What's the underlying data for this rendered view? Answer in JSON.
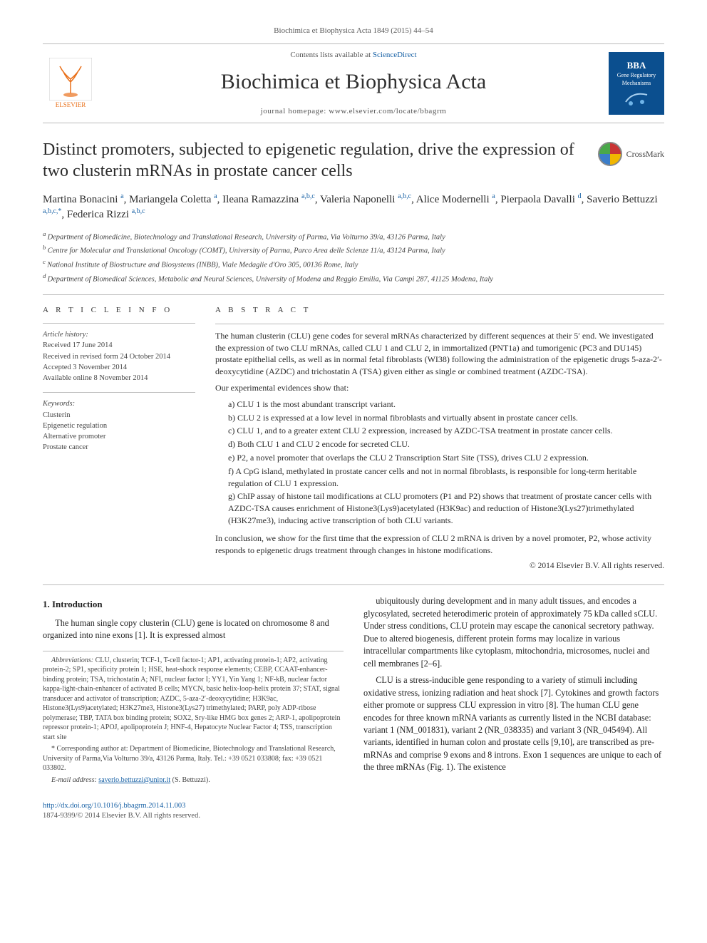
{
  "citation": "Biochimica et Biophysica Acta 1849 (2015) 44–54",
  "header": {
    "contents_prefix": "Contents lists available at ",
    "contents_link": "ScienceDirect",
    "journal": "Biochimica et Biophysica Acta",
    "homepage_label": "journal homepage: ",
    "homepage_url": "www.elsevier.com/locate/bbagrm",
    "publisher_logo_text": "ELSEVIER",
    "cover_top": "BBA",
    "cover_mid": "Gene Regulatory Mechanisms"
  },
  "title": "Distinct promoters, subjected to epigenetic regulation, drive the expression of two clusterin mRNAs in prostate cancer cells",
  "crossmark": "CrossMark",
  "authors_html": "Martina Bonacini <sup>a</sup>, Mariangela Coletta <sup>a</sup>, Ileana Ramazzina <sup>a,b,c</sup>, Valeria Naponelli <sup>a,b,c</sup>, Alice Modernelli <sup>a</sup>, Pierpaola Davalli <sup>d</sup>, Saverio Bettuzzi <sup>a,b,c,*</sup>, Federica Rizzi <sup>a,b,c</sup>",
  "affiliations": [
    "a Department of Biomedicine, Biotechnology and Translational Research, University of Parma, Via Volturno 39/a, 43126 Parma, Italy",
    "b Centre for Molecular and Translational Oncology (COMT), University of Parma, Parco Area delle Scienze 11/a, 43124 Parma, Italy",
    "c National Institute of Biostructure and Biosystems (INBB), Viale Medaglie d'Oro 305, 00136 Rome, Italy",
    "d Department of Biomedical Sciences, Metabolic and Neural Sciences, University of Modena and Reggio Emilia, Via Campi 287, 41125 Modena, Italy"
  ],
  "article_info": {
    "heading": "A R T I C L E   I N F O",
    "history_label": "Article history:",
    "history": [
      "Received 17 June 2014",
      "Received in revised form 24 October 2014",
      "Accepted 3 November 2014",
      "Available online 8 November 2014"
    ],
    "keywords_label": "Keywords:",
    "keywords": [
      "Clusterin",
      "Epigenetic regulation",
      "Alternative promoter",
      "Prostate cancer"
    ]
  },
  "abstract": {
    "heading": "A B S T R A C T",
    "p1": "The human clusterin (CLU) gene codes for several mRNAs characterized by different sequences at their 5′ end. We investigated the expression of two CLU mRNAs, called CLU 1 and CLU 2, in immortalized (PNT1a) and tumorigenic (PC3 and DU145) prostate epithelial cells, as well as in normal fetal fibroblasts (WI38) following the administration of the epigenetic drugs 5-aza-2′-deoxycytidine (AZDC) and trichostatin A (TSA) given either as single or combined treatment (AZDC-TSA).",
    "p2": "Our experimental evidences show that:",
    "items": [
      "a) CLU 1 is the most abundant transcript variant.",
      "b) CLU 2 is expressed at a low level in normal fibroblasts and virtually absent in prostate cancer cells.",
      "c) CLU 1, and to a greater extent CLU 2 expression, increased by AZDC-TSA treatment in prostate cancer cells.",
      "d) Both CLU 1 and CLU 2 encode for secreted CLU.",
      "e) P2, a novel promoter that overlaps the CLU 2 Transcription Start Site (TSS), drives CLU 2 expression.",
      "f) A CpG island, methylated in prostate cancer cells and not in normal fibroblasts, is responsible for long-term heritable regulation of CLU 1 expression.",
      "g) ChIP assay of histone tail modifications at CLU promoters (P1 and P2) shows that treatment of prostate cancer cells with AZDC-TSA causes enrichment of Histone3(Lys9)acetylated (H3K9ac) and reduction of Histone3(Lys27)trimethylated (H3K27me3), inducing active transcription of both CLU variants."
    ],
    "p3": "In conclusion, we show for the first time that the expression of CLU 2 mRNA is driven by a novel promoter, P2, whose activity responds to epigenetic drugs treatment through changes in histone modifications.",
    "copyright": "© 2014 Elsevier B.V. All rights reserved."
  },
  "body": {
    "section_heading": "1. Introduction",
    "para1": "The human single copy clusterin (CLU) gene is located on chromosome 8 and organized into nine exons [1]. It is expressed almost",
    "para2": "ubiquitously during development and in many adult tissues, and encodes a glycosylated, secreted heterodimeric protein of approximately 75 kDa called sCLU. Under stress conditions, CLU protein may escape the canonical secretory pathway. Due to altered biogenesis, different protein forms may localize in various intracellular compartments like cytoplasm, mitochondria, microsomes, nuclei and cell membranes [2–6].",
    "para3": "CLU is a stress-inducible gene responding to a variety of stimuli including oxidative stress, ionizing radiation and heat shock [7]. Cytokines and growth factors either promote or suppress CLU expression in vitro [8]. The human CLU gene encodes for three known mRNA variants as currently listed in the NCBI database: variant 1 (NM_001831), variant 2 (NR_038335) and variant 3 (NR_045494). All variants, identified in human colon and prostate cells [9,10], are transcribed as pre-mRNAs and comprise 9 exons and 8 introns. Exon 1 sequences are unique to each of the three mRNAs (Fig. 1). The existence"
  },
  "footnotes": {
    "abbrev_label": "Abbreviations:",
    "abbrev_text": " CLU, clusterin; TCF-1, T-cell factor-1; AP1, activating protein-1; AP2, activating protein-2; SP1, specificity protein 1; HSE, heat-shock response elements; CEBP, CCAAT-enhancer-binding protein; TSA, trichostatin A; NFI, nuclear factor I; YY1, Yin Yang 1; NF-kB, nuclear factor kappa-light-chain-enhancer of activated B cells; MYCN, basic helix-loop-helix protein 37; STAT, signal transducer and activator of transcription; AZDC, 5-aza-2′-deoxycytidine; H3K9ac, Histone3(Lys9)acetylated; H3K27me3, Histone3(Lys27) trimethylated; PARP, poly ADP-ribose polymerase; TBP, TATA box binding protein; SOX2, Sry-like HMG box genes 2; ARP-1, apolipoprotein repressor protein-1; APOJ, apolipoprotein J; HNF-4, Hepatocyte Nuclear Factor 4; TSS, transcription start site",
    "corr_label": "* Corresponding author at: ",
    "corr_text": "Department of Biomedicine, Biotechnology and Translational Research, University of Parma,Via Volturno 39/a, 43126 Parma, Italy. Tel.: +39 0521 033808; fax: +39 0521 033802.",
    "email_label": "E-mail address: ",
    "email": "saverio.bettuzzi@unipr.it",
    "email_owner": " (S. Bettuzzi)."
  },
  "footer": {
    "doi": "http://dx.doi.org/10.1016/j.bbagrm.2014.11.003",
    "issn_line": "1874-9399/© 2014 Elsevier B.V. All rights reserved."
  },
  "colors": {
    "link": "#1660a5",
    "elsevier_orange": "#e9711c",
    "cover_blue": "#0b4f8f",
    "rule": "#bbbbbb",
    "text": "#222222"
  }
}
